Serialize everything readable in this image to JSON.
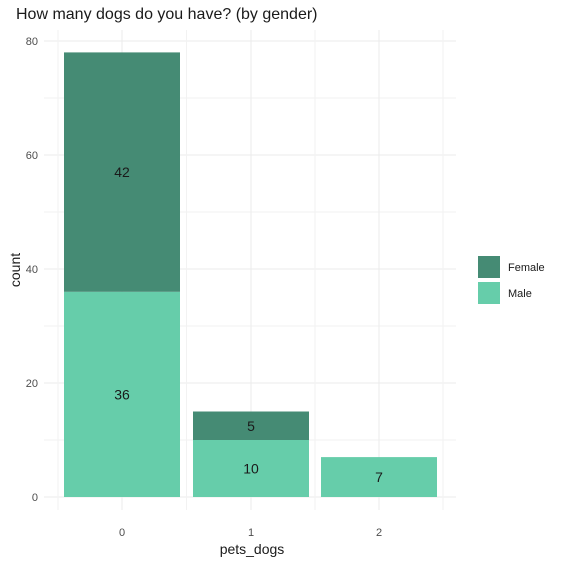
{
  "chart_data": {
    "type": "bar",
    "stacked": true,
    "title": "How many dogs do you have? (by gender)",
    "xlabel": "pets_dogs",
    "ylabel": "count",
    "categories": [
      "0",
      "1",
      "2"
    ],
    "series": [
      {
        "name": "Male",
        "values": [
          36,
          10,
          7
        ],
        "color": "#66cdaa"
      },
      {
        "name": "Female",
        "values": [
          42,
          5,
          0
        ],
        "color": "#458b74"
      }
    ],
    "ylim": [
      0,
      80
    ],
    "yticks": [
      0,
      20,
      40,
      60,
      80
    ],
    "grid": true,
    "legend": {
      "position": "right",
      "order": [
        "Female",
        "Male"
      ]
    }
  }
}
